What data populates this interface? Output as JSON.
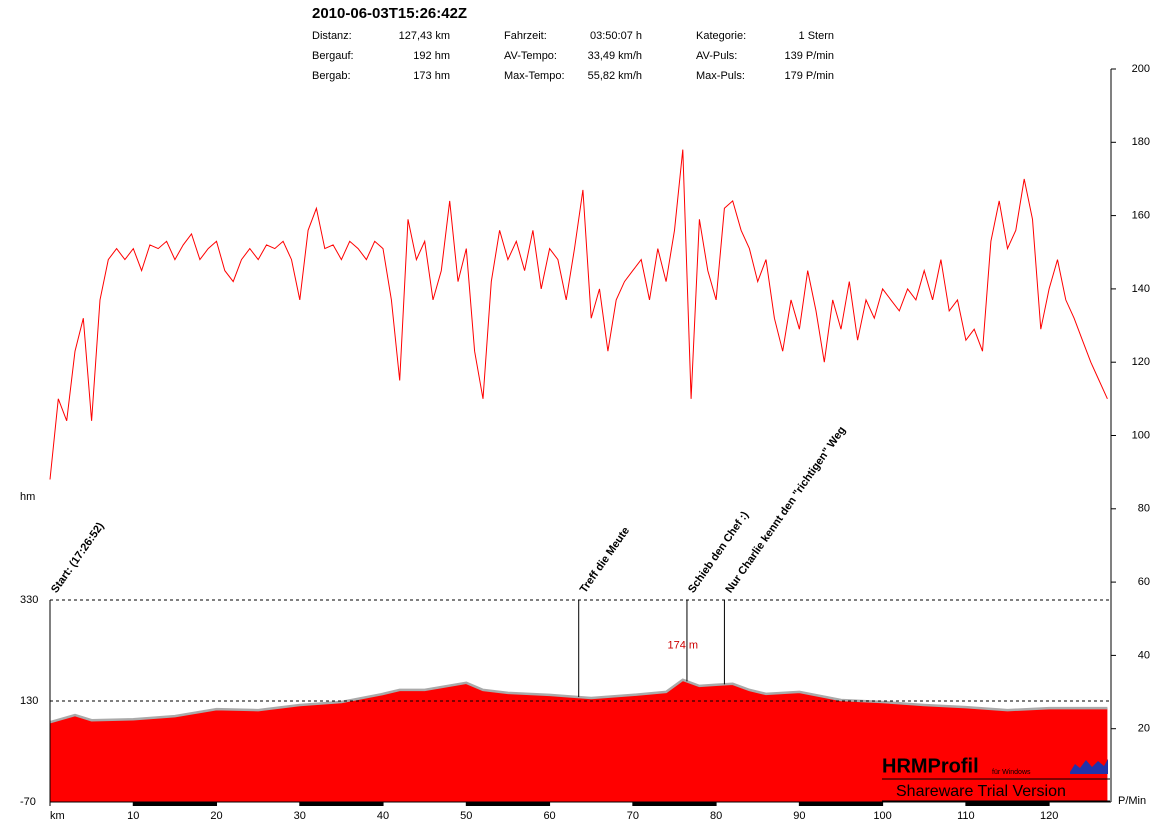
{
  "chart_data": {
    "type": "line",
    "title": "2010-06-03T15:26:42Z",
    "stats": [
      {
        "label": "Distanz:",
        "value": "127,43 km"
      },
      {
        "label": "Bergauf:",
        "value": "192 hm"
      },
      {
        "label": "Bergab:",
        "value": "173 hm"
      },
      {
        "label": "Fahrzeit:",
        "value": "03:50:07 h"
      },
      {
        "label": "AV-Tempo:",
        "value": "33,49 km/h"
      },
      {
        "label": "Max-Tempo:",
        "value": "55,82 km/h"
      },
      {
        "label": "Kategorie:",
        "value": "1 Stern"
      },
      {
        "label": "AV-Puls:",
        "value": "139 P/min"
      },
      {
        "label": "Max-Puls:",
        "value": "179 P/min"
      }
    ],
    "y_label": "hm",
    "y2_label": "P/Min",
    "xlim": [
      0,
      127.43
    ],
    "xticks": [
      {
        "value": 0,
        "label": "km"
      },
      10,
      20,
      30,
      40,
      50,
      60,
      70,
      80,
      90,
      100,
      110,
      120
    ],
    "ylim": [
      -70,
      330
    ],
    "yticks": [
      -70,
      130,
      330
    ],
    "y2lim": [
      0,
      200
    ],
    "y2ticks": [
      20,
      40,
      60,
      80,
      100,
      120,
      140,
      160,
      180,
      200
    ],
    "series": [
      {
        "name": "Höhe",
        "type": "area",
        "color": "#ff0000",
        "x": [
          0,
          3,
          5,
          10,
          15,
          20,
          25,
          30,
          35,
          40,
          42,
          45,
          50,
          52,
          55,
          60,
          65,
          70,
          74,
          76,
          78,
          80,
          82,
          84,
          86,
          90,
          95,
          100,
          105,
          110,
          115,
          120,
          125,
          127
        ],
        "values": [
          88,
          102,
          92,
          94,
          100,
          114,
          112,
          122,
          128,
          144,
          152,
          152,
          166,
          152,
          146,
          142,
          136,
          142,
          148,
          172,
          160,
          162,
          164,
          152,
          144,
          148,
          132,
          128,
          122,
          118,
          112,
          116,
          116,
          116
        ]
      },
      {
        "name": "Puls",
        "type": "line",
        "color": "#ff0000",
        "axis": "y2",
        "x": [
          0,
          1,
          2,
          3,
          4,
          5,
          6,
          7,
          8,
          9,
          10,
          11,
          12,
          13,
          14,
          15,
          16,
          17,
          18,
          19,
          20,
          21,
          22,
          23,
          24,
          25,
          26,
          27,
          28,
          29,
          30,
          31,
          32,
          33,
          34,
          35,
          36,
          37,
          38,
          39,
          40,
          41,
          42,
          43,
          44,
          45,
          46,
          47,
          48,
          49,
          50,
          51,
          52,
          53,
          54,
          55,
          56,
          57,
          58,
          59,
          60,
          61,
          62,
          63,
          64,
          65,
          66,
          67,
          68,
          69,
          70,
          71,
          72,
          73,
          74,
          75,
          76,
          77,
          78,
          79,
          80,
          81,
          82,
          83,
          84,
          85,
          86,
          87,
          88,
          89,
          90,
          91,
          92,
          93,
          94,
          95,
          96,
          97,
          98,
          99,
          100,
          101,
          102,
          103,
          104,
          105,
          106,
          107,
          108,
          109,
          110,
          111,
          112,
          113,
          114,
          115,
          116,
          117,
          118,
          119,
          120,
          121,
          122,
          123,
          124,
          125,
          126,
          127
        ],
        "values": [
          88,
          110,
          104,
          123,
          132,
          104,
          137,
          148,
          151,
          148,
          151,
          145,
          152,
          151,
          153,
          148,
          152,
          155,
          148,
          151,
          153,
          145,
          142,
          148,
          151,
          148,
          152,
          151,
          153,
          148,
          137,
          156,
          162,
          151,
          152,
          148,
          153,
          151,
          148,
          153,
          151,
          137,
          115,
          159,
          148,
          153,
          137,
          145,
          164,
          142,
          151,
          123,
          110,
          142,
          156,
          148,
          153,
          145,
          156,
          140,
          151,
          148,
          137,
          151,
          167,
          132,
          140,
          123,
          137,
          142,
          145,
          148,
          137,
          151,
          142,
          156,
          178,
          110,
          159,
          145,
          137,
          162,
          164,
          156,
          151,
          142,
          148,
          132,
          123,
          137,
          129,
          145,
          134,
          120,
          137,
          129,
          142,
          126,
          137,
          132,
          140,
          137,
          134,
          140,
          137,
          145,
          137,
          148,
          134,
          137,
          126,
          129,
          123,
          153,
          164,
          151,
          156,
          170,
          159,
          129,
          140,
          148,
          137,
          132,
          126,
          120,
          115,
          110
        ]
      }
    ],
    "annotations": [
      {
        "x": 0,
        "text": "Start: (17:26:52)"
      },
      {
        "x": 63.5,
        "text": "Treff die Meute"
      },
      {
        "x": 76.5,
        "text": "Schieb den Chef :)"
      },
      {
        "x": 81,
        "text": "Nur Charlie kennt den \"richtigen\" Weg"
      }
    ],
    "peak_label": {
      "x": 76,
      "value": 174,
      "text": "174 m"
    },
    "logo": {
      "name": "HRMProfil",
      "sub": "für Windows",
      "note": "Shareware Trial  Version"
    }
  }
}
